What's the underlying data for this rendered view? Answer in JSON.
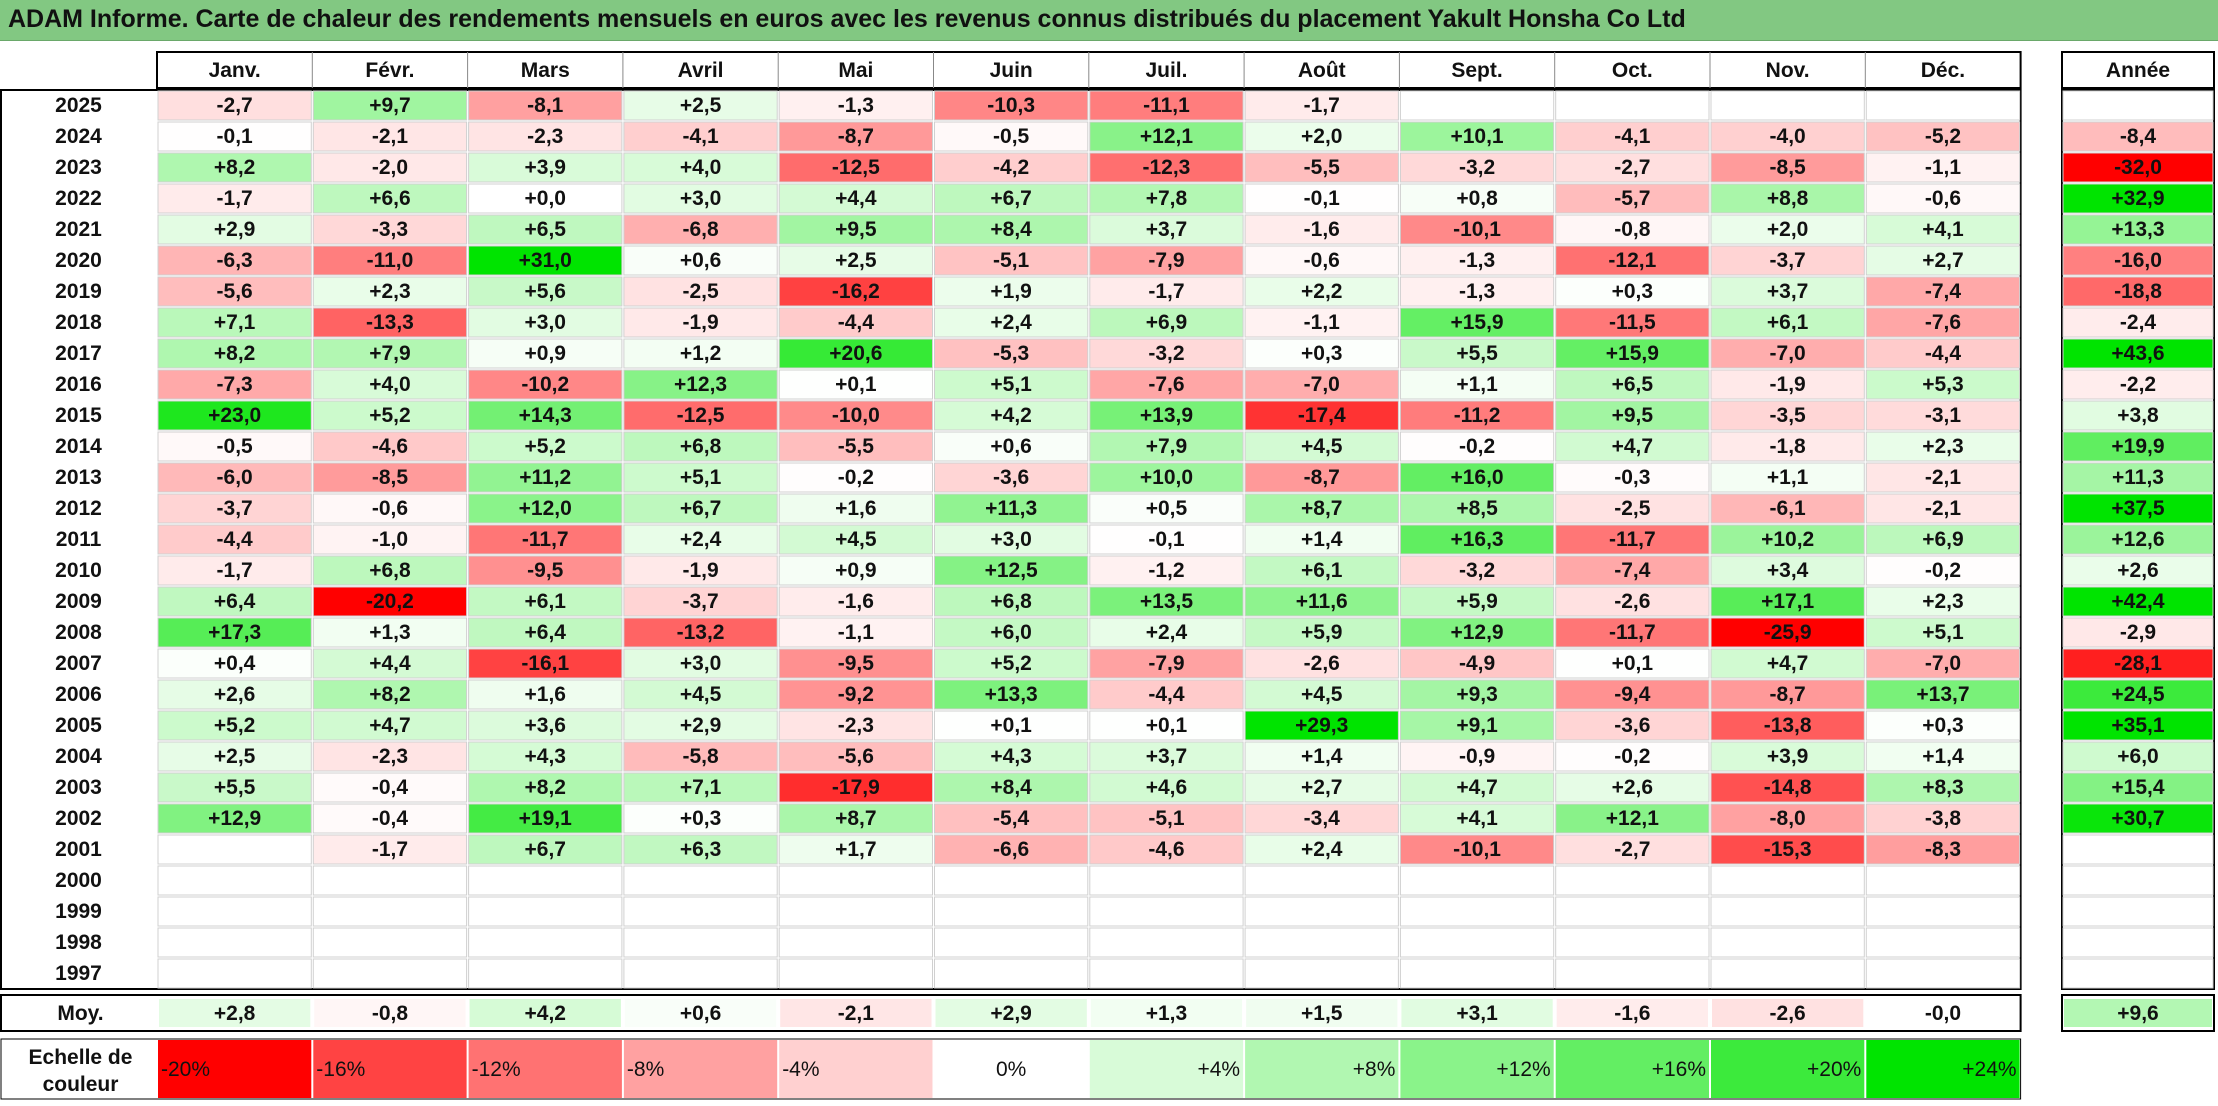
{
  "title": "ADAM Informe. Carte de chaleur des rendements mensuels en euros avec les revenus connus distribués du placement Yakult Honsha Co Ltd",
  "colors": {
    "title_bar": "#82c882",
    "negative_max": "#ff0000",
    "neutral": "#ffffff",
    "positive_max": "#00e400"
  },
  "chart_data": {
    "type": "heatmap",
    "months": [
      "Janv.",
      "Févr.",
      "Mars",
      "Avril",
      "Mai",
      "Juin",
      "Juil.",
      "Août",
      "Sept.",
      "Oct.",
      "Nov.",
      "Déc."
    ],
    "annual_header": "Année",
    "rows": [
      {
        "year": "2025",
        "values": [
          "-2,7",
          "+9,7",
          "-8,1",
          "+2,5",
          "-1,3",
          "-10,3",
          "-11,1",
          "-1,7",
          "",
          "",
          "",
          ""
        ],
        "annual": ""
      },
      {
        "year": "2024",
        "values": [
          "-0,1",
          "-2,1",
          "-2,3",
          "-4,1",
          "-8,7",
          "-0,5",
          "+12,1",
          "+2,0",
          "+10,1",
          "-4,1",
          "-4,0",
          "-5,2"
        ],
        "annual": "-8,4"
      },
      {
        "year": "2023",
        "values": [
          "+8,2",
          "-2,0",
          "+3,9",
          "+4,0",
          "-12,5",
          "-4,2",
          "-12,3",
          "-5,5",
          "-3,2",
          "-2,7",
          "-8,5",
          "-1,1"
        ],
        "annual": "-32,0"
      },
      {
        "year": "2022",
        "values": [
          "-1,7",
          "+6,6",
          "+0,0",
          "+3,0",
          "+4,4",
          "+6,7",
          "+7,8",
          "-0,1",
          "+0,8",
          "-5,7",
          "+8,8",
          "-0,6"
        ],
        "annual": "+32,9"
      },
      {
        "year": "2021",
        "values": [
          "+2,9",
          "-3,3",
          "+6,5",
          "-6,8",
          "+9,5",
          "+8,4",
          "+3,7",
          "-1,6",
          "-10,1",
          "-0,8",
          "+2,0",
          "+4,1"
        ],
        "annual": "+13,3"
      },
      {
        "year": "2020",
        "values": [
          "-6,3",
          "-11,0",
          "+31,0",
          "+0,6",
          "+2,5",
          "-5,1",
          "-7,9",
          "-0,6",
          "-1,3",
          "-12,1",
          "-3,7",
          "+2,7"
        ],
        "annual": "-16,0"
      },
      {
        "year": "2019",
        "values": [
          "-5,6",
          "+2,3",
          "+5,6",
          "-2,5",
          "-16,2",
          "+1,9",
          "-1,7",
          "+2,2",
          "-1,3",
          "+0,3",
          "+3,7",
          "-7,4"
        ],
        "annual": "-18,8"
      },
      {
        "year": "2018",
        "values": [
          "+7,1",
          "-13,3",
          "+3,0",
          "-1,9",
          "-4,4",
          "+2,4",
          "+6,9",
          "-1,1",
          "+15,9",
          "-11,5",
          "+6,1",
          "-7,6"
        ],
        "annual": "-2,4"
      },
      {
        "year": "2017",
        "values": [
          "+8,2",
          "+7,9",
          "+0,9",
          "+1,2",
          "+20,6",
          "-5,3",
          "-3,2",
          "+0,3",
          "+5,5",
          "+15,9",
          "-7,0",
          "-4,4"
        ],
        "annual": "+43,6"
      },
      {
        "year": "2016",
        "values": [
          "-7,3",
          "+4,0",
          "-10,2",
          "+12,3",
          "+0,1",
          "+5,1",
          "-7,6",
          "-7,0",
          "+1,1",
          "+6,5",
          "-1,9",
          "+5,3"
        ],
        "annual": "-2,2"
      },
      {
        "year": "2015",
        "values": [
          "+23,0",
          "+5,2",
          "+14,3",
          "-12,5",
          "-10,0",
          "+4,2",
          "+13,9",
          "-17,4",
          "-11,2",
          "+9,5",
          "-3,5",
          "-3,1"
        ],
        "annual": "+3,8"
      },
      {
        "year": "2014",
        "values": [
          "-0,5",
          "-4,6",
          "+5,2",
          "+6,8",
          "-5,5",
          "+0,6",
          "+7,9",
          "+4,5",
          "-0,2",
          "+4,7",
          "-1,8",
          "+2,3"
        ],
        "annual": "+19,9"
      },
      {
        "year": "2013",
        "values": [
          "-6,0",
          "-8,5",
          "+11,2",
          "+5,1",
          "-0,2",
          "-3,6",
          "+10,0",
          "-8,7",
          "+16,0",
          "-0,3",
          "+1,1",
          "-2,1"
        ],
        "annual": "+11,3"
      },
      {
        "year": "2012",
        "values": [
          "-3,7",
          "-0,6",
          "+12,0",
          "+6,7",
          "+1,6",
          "+11,3",
          "+0,5",
          "+8,7",
          "+8,5",
          "-2,5",
          "-6,1",
          "-2,1"
        ],
        "annual": "+37,5"
      },
      {
        "year": "2011",
        "values": [
          "-4,4",
          "-1,0",
          "-11,7",
          "+2,4",
          "+4,5",
          "+3,0",
          "-0,1",
          "+1,4",
          "+16,3",
          "-11,7",
          "+10,2",
          "+6,9"
        ],
        "annual": "+12,6"
      },
      {
        "year": "2010",
        "values": [
          "-1,7",
          "+6,8",
          "-9,5",
          "-1,9",
          "+0,9",
          "+12,5",
          "-1,2",
          "+6,1",
          "-3,2",
          "-7,4",
          "+3,4",
          "-0,2"
        ],
        "annual": "+2,6"
      },
      {
        "year": "2009",
        "values": [
          "+6,4",
          "-20,2",
          "+6,1",
          "-3,7",
          "-1,6",
          "+6,8",
          "+13,5",
          "+11,6",
          "+5,9",
          "-2,6",
          "+17,1",
          "+2,3"
        ],
        "annual": "+42,4"
      },
      {
        "year": "2008",
        "values": [
          "+17,3",
          "+1,3",
          "+6,4",
          "-13,2",
          "-1,1",
          "+6,0",
          "+2,4",
          "+5,9",
          "+12,9",
          "-11,7",
          "-25,9",
          "+5,1"
        ],
        "annual": "-2,9"
      },
      {
        "year": "2007",
        "values": [
          "+0,4",
          "+4,4",
          "-16,1",
          "+3,0",
          "-9,5",
          "+5,2",
          "-7,9",
          "-2,6",
          "-4,9",
          "+0,1",
          "+4,7",
          "-7,0"
        ],
        "annual": "-28,1"
      },
      {
        "year": "2006",
        "values": [
          "+2,6",
          "+8,2",
          "+1,6",
          "+4,5",
          "-9,2",
          "+13,3",
          "-4,4",
          "+4,5",
          "+9,3",
          "-9,4",
          "-8,7",
          "+13,7"
        ],
        "annual": "+24,5"
      },
      {
        "year": "2005",
        "values": [
          "+5,2",
          "+4,7",
          "+3,6",
          "+2,9",
          "-2,3",
          "+0,1",
          "+0,1",
          "+29,3",
          "+9,1",
          "-3,6",
          "-13,8",
          "+0,3"
        ],
        "annual": "+35,1"
      },
      {
        "year": "2004",
        "values": [
          "+2,5",
          "-2,3",
          "+4,3",
          "-5,8",
          "-5,6",
          "+4,3",
          "+3,7",
          "+1,4",
          "-0,9",
          "-0,2",
          "+3,9",
          "+1,4"
        ],
        "annual": "+6,0"
      },
      {
        "year": "2003",
        "values": [
          "+5,5",
          "-0,4",
          "+8,2",
          "+7,1",
          "-17,9",
          "+8,4",
          "+4,6",
          "+2,7",
          "+4,7",
          "+2,6",
          "-14,8",
          "+8,3"
        ],
        "annual": "+15,4"
      },
      {
        "year": "2002",
        "values": [
          "+12,9",
          "-0,4",
          "+19,1",
          "+0,3",
          "+8,7",
          "-5,4",
          "-5,1",
          "-3,4",
          "+4,1",
          "+12,1",
          "-8,0",
          "-3,8"
        ],
        "annual": "+30,7"
      },
      {
        "year": "2001",
        "values": [
          "",
          "-1,7",
          "+6,7",
          "+6,3",
          "+1,7",
          "-6,6",
          "-4,6",
          "+2,4",
          "-10,1",
          "-2,7",
          "-15,3",
          "-8,3"
        ],
        "annual": ""
      },
      {
        "year": "2000",
        "values": [
          "",
          "",
          "",
          "",
          "",
          "",
          "",
          "",
          "",
          "",
          "",
          ""
        ],
        "annual": ""
      },
      {
        "year": "1999",
        "values": [
          "",
          "",
          "",
          "",
          "",
          "",
          "",
          "",
          "",
          "",
          "",
          ""
        ],
        "annual": ""
      },
      {
        "year": "1998",
        "values": [
          "",
          "",
          "",
          "",
          "",
          "",
          "",
          "",
          "",
          "",
          "",
          ""
        ],
        "annual": ""
      },
      {
        "year": "1997",
        "values": [
          "",
          "",
          "",
          "",
          "",
          "",
          "",
          "",
          "",
          "",
          "",
          ""
        ],
        "annual": ""
      }
    ],
    "average": {
      "label": "Moy.",
      "values": [
        "+2,8",
        "-0,8",
        "+4,2",
        "+0,6",
        "-2,1",
        "+2,9",
        "+1,3",
        "+1,5",
        "+3,1",
        "-1,6",
        "-2,6",
        "-0,0"
      ],
      "annual": "+9,6"
    },
    "color_scale": {
      "label_line1": "Echelle de",
      "label_line2": "couleur",
      "stops": [
        "-20%",
        "-16%",
        "-12%",
        "-8%",
        "-4%",
        "0%",
        "+4%",
        "+8%",
        "+12%",
        "+16%",
        "+20%",
        "+24%"
      ],
      "stop_values": [
        -20,
        -16,
        -12,
        -8,
        -4,
        0,
        4,
        8,
        12,
        16,
        20,
        24
      ]
    }
  }
}
